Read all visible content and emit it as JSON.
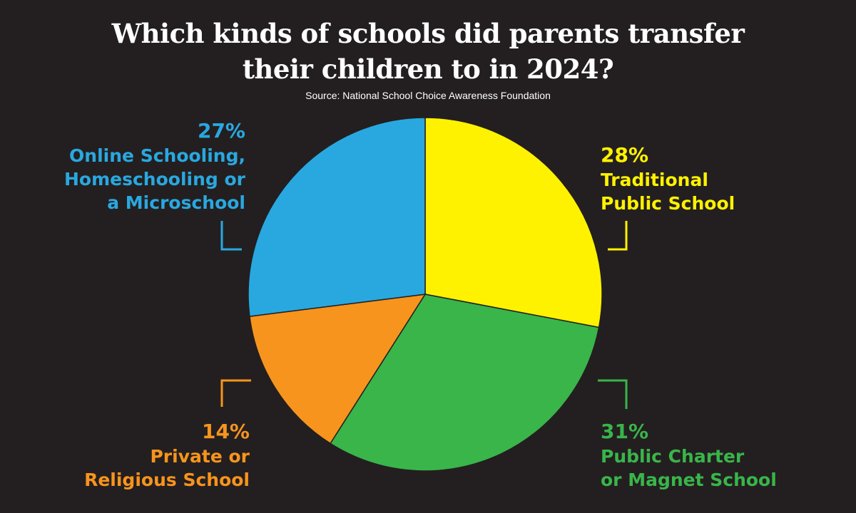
{
  "title_lines": [
    "Which kinds of schools did parents transfer",
    "their children to in 2024?"
  ],
  "source": "Source: National School Choice Awareness Foundation",
  "chart_data": {
    "type": "pie",
    "title": "Which kinds of schools did parents transfer their children to in 2024?",
    "slices": [
      {
        "name": "Traditional Public School",
        "value": 28,
        "pct_label": "28%",
        "lines": [
          "Traditional",
          "Public School"
        ],
        "color": "#fff200"
      },
      {
        "name": "Public Charter or Magnet School",
        "value": 31,
        "pct_label": "31%",
        "lines": [
          "Public Charter",
          "or Magnet School"
        ],
        "color": "#39b54a"
      },
      {
        "name": "Private or Religious School",
        "value": 14,
        "pct_label": "14%",
        "lines": [
          "Private or",
          "Religious School"
        ],
        "color": "#f7941d"
      },
      {
        "name": "Online Schooling, Homeschooling or a Microschool",
        "value": 27,
        "pct_label": "27%",
        "lines": [
          "Online Schooling,",
          "Homeschooling or",
          "a Microschool"
        ],
        "color": "#29a8e0"
      }
    ],
    "start_angle": "12 o'clock",
    "direction": "clockwise",
    "legend": "none"
  }
}
